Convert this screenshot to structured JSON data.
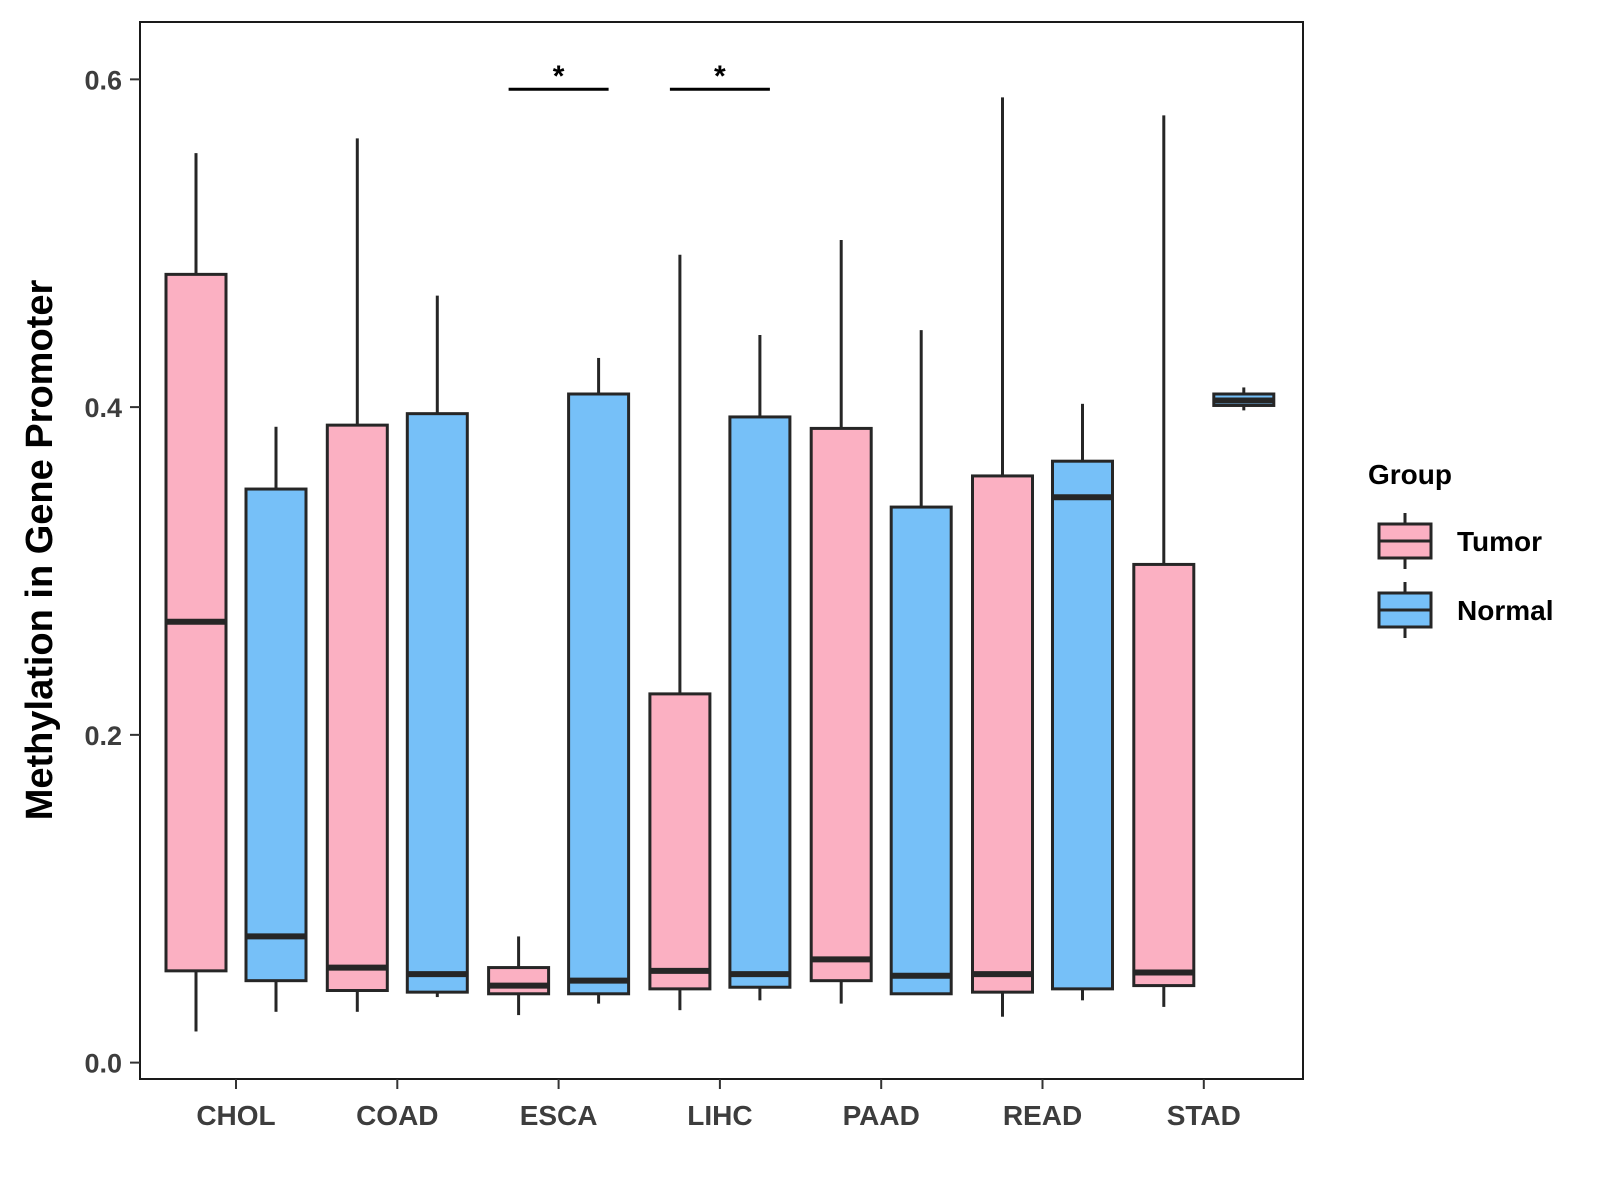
{
  "chart_data": {
    "type": "boxplot",
    "ylabel": "Methylation in Gene Promoter",
    "xlabel": "",
    "ylim": [
      -0.01,
      0.635
    ],
    "yticks": [
      0.0,
      0.2,
      0.4,
      0.6
    ],
    "ytick_labels": [
      "0.0",
      "0.2",
      "0.4",
      "0.6"
    ],
    "grid": false,
    "legend": {
      "title": "Group",
      "position": "right",
      "entries": [
        {
          "name": "Tumor",
          "color": "#FBB0C2"
        },
        {
          "name": "Normal",
          "color": "#76C0F8"
        }
      ]
    },
    "categories": [
      "CHOL",
      "COAD",
      "ESCA",
      "LIHC",
      "PAAD",
      "READ",
      "STAD"
    ],
    "series": [
      {
        "name": "Tumor",
        "color": "#FBB0C2",
        "boxes": [
          {
            "category": "CHOL",
            "min": 0.019,
            "q1": 0.056,
            "median": 0.269,
            "q3": 0.481,
            "max": 0.555
          },
          {
            "category": "COAD",
            "min": 0.031,
            "q1": 0.044,
            "median": 0.058,
            "q3": 0.389,
            "max": 0.564
          },
          {
            "category": "ESCA",
            "min": 0.029,
            "q1": 0.042,
            "median": 0.047,
            "q3": 0.058,
            "max": 0.077
          },
          {
            "category": "LIHC",
            "min": 0.032,
            "q1": 0.045,
            "median": 0.056,
            "q3": 0.225,
            "max": 0.493
          },
          {
            "category": "PAAD",
            "min": 0.036,
            "q1": 0.05,
            "median": 0.063,
            "q3": 0.387,
            "max": 0.502
          },
          {
            "category": "READ",
            "min": 0.028,
            "q1": 0.043,
            "median": 0.054,
            "q3": 0.358,
            "max": 0.589
          },
          {
            "category": "STAD",
            "min": 0.034,
            "q1": 0.047,
            "median": 0.055,
            "q3": 0.304,
            "max": 0.578
          }
        ]
      },
      {
        "name": "Normal",
        "color": "#76C0F8",
        "boxes": [
          {
            "category": "CHOL",
            "min": 0.031,
            "q1": 0.05,
            "median": 0.077,
            "q3": 0.35,
            "max": 0.388
          },
          {
            "category": "COAD",
            "min": 0.04,
            "q1": 0.043,
            "median": 0.054,
            "q3": 0.396,
            "max": 0.468
          },
          {
            "category": "ESCA",
            "min": 0.036,
            "q1": 0.042,
            "median": 0.05,
            "q3": 0.408,
            "max": 0.43
          },
          {
            "category": "LIHC",
            "min": 0.038,
            "q1": 0.046,
            "median": 0.054,
            "q3": 0.394,
            "max": 0.444
          },
          {
            "category": "PAAD",
            "min": 0.042,
            "q1": 0.042,
            "median": 0.053,
            "q3": 0.339,
            "max": 0.447
          },
          {
            "category": "READ",
            "min": 0.038,
            "q1": 0.045,
            "median": 0.345,
            "q3": 0.367,
            "max": 0.402
          },
          {
            "category": "STAD",
            "min": 0.398,
            "q1": 0.401,
            "median": 0.404,
            "q3": 0.408,
            "max": 0.412
          }
        ]
      }
    ],
    "annotations": [
      {
        "category": "ESCA",
        "label": "*",
        "y": 0.594
      },
      {
        "category": "LIHC",
        "label": "*",
        "y": 0.594
      }
    ]
  }
}
